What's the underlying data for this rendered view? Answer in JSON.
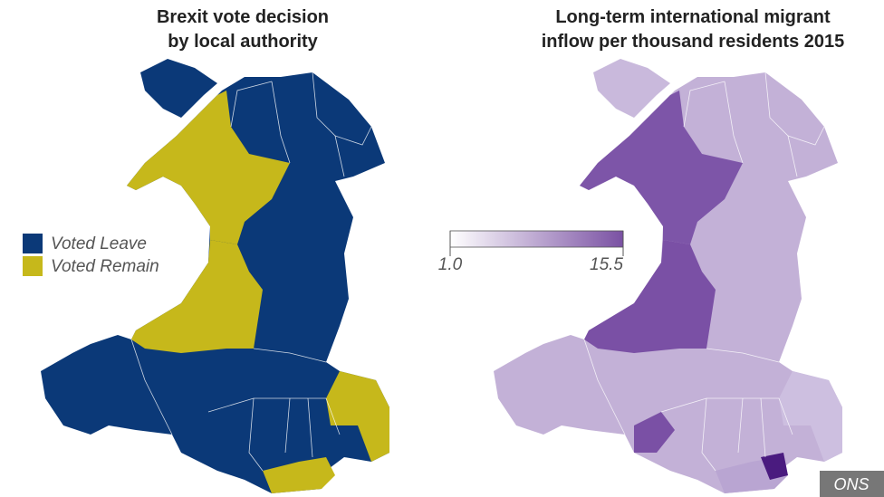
{
  "left_map": {
    "title": [
      "Brexit vote decision",
      "by local authority"
    ],
    "legend": [
      {
        "label": "Voted Leave",
        "color": "#0b3978"
      },
      {
        "label": "Voted Remain",
        "color": "#c6b81b"
      }
    ]
  },
  "right_map": {
    "title": [
      "Long-term international migrant",
      "inflow per thousand residents 2015"
    ],
    "color_scale": {
      "colors": [
        "#ffffff",
        "#7a51a3"
      ],
      "ticks": [
        {
          "value": 1,
          "label": "1.0"
        },
        {
          "value": 15.5,
          "label": "15.5"
        }
      ]
    }
  },
  "source": "ONS"
}
